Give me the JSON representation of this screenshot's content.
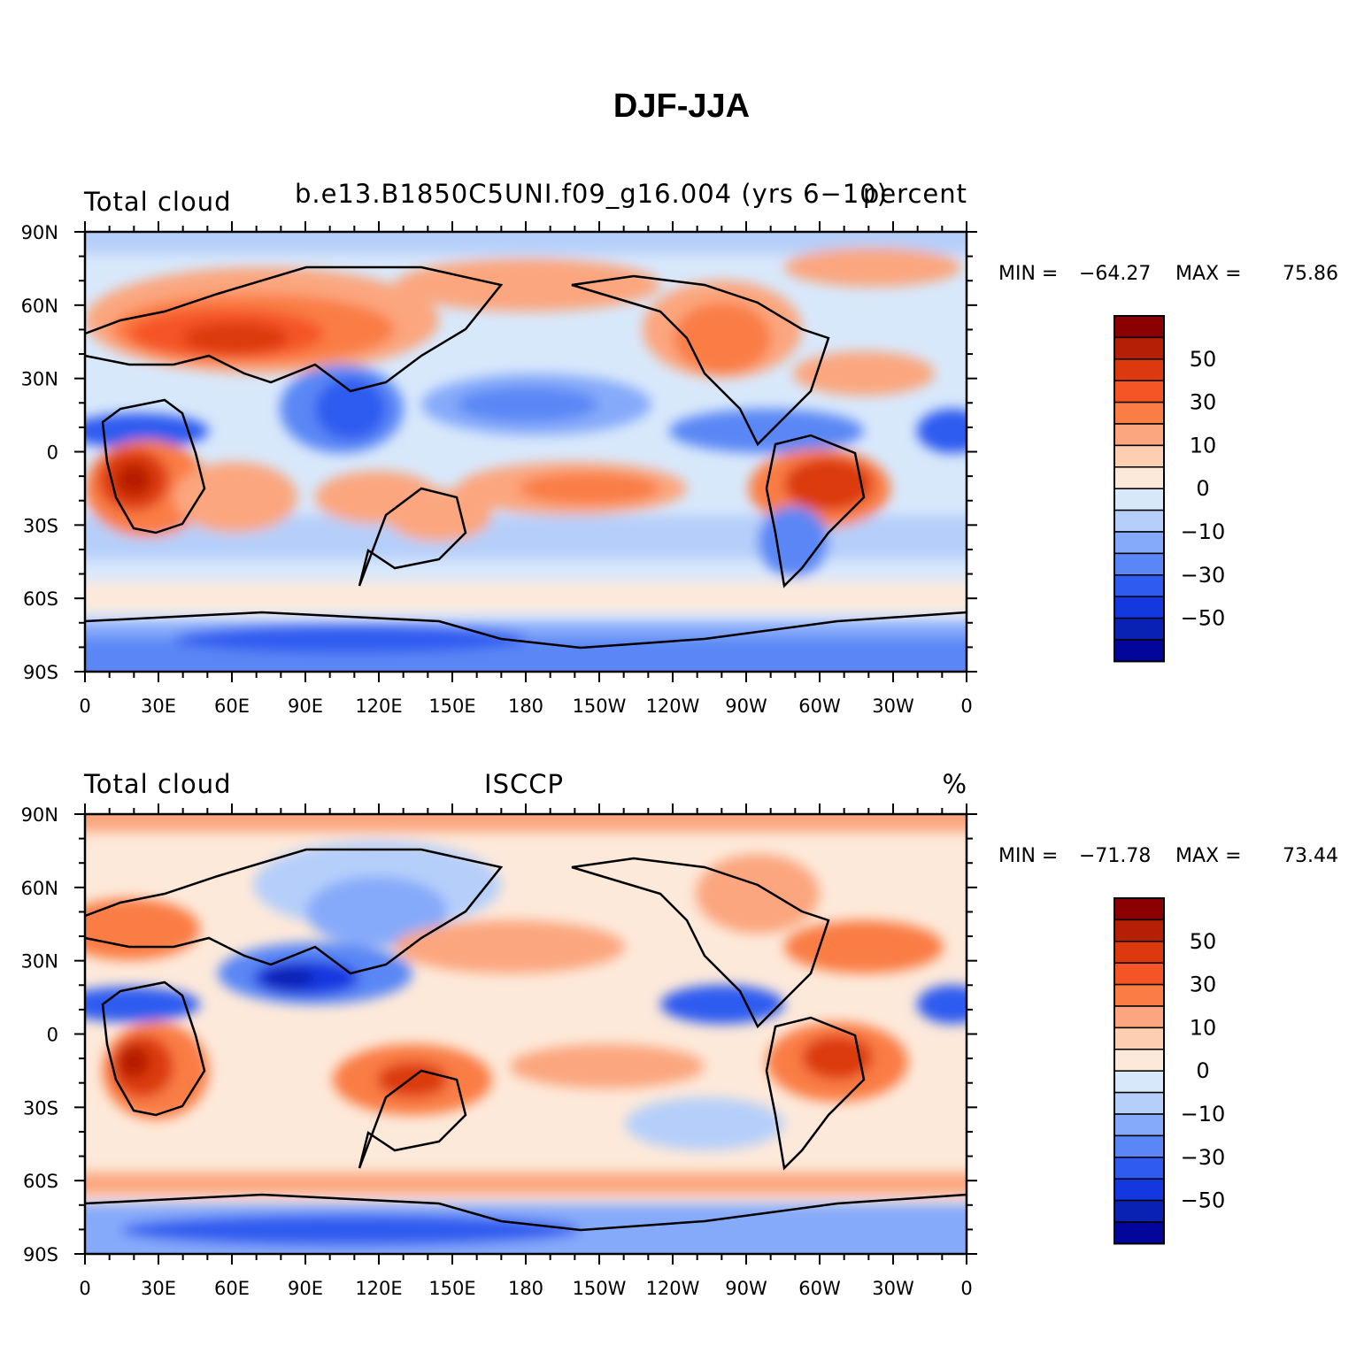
{
  "title": "DJF-JJA",
  "panels": [
    {
      "left_title": "Total cloud",
      "center_title": "b.e13.B1850C5UNI.f09_g16.004 (yrs 6−10)",
      "right_title": "percent",
      "stats": {
        "min_label": "MIN =",
        "min": "−64.27",
        "max_label": "MAX =",
        "max": "75.86"
      }
    },
    {
      "left_title": "Total cloud",
      "center_title": "ISCCP",
      "right_title": "%",
      "stats": {
        "min_label": "MIN =",
        "min": "−71.78",
        "max_label": "MAX =",
        "max": "73.44"
      }
    }
  ],
  "lat_labels": [
    "90N",
    "60N",
    "30N",
    "0",
    "30S",
    "60S",
    "90S"
  ],
  "lon_labels": [
    "0",
    "30E",
    "60E",
    "90E",
    "120E",
    "150E",
    "180",
    "150W",
    "120W",
    "90W",
    "60W",
    "30W",
    "0"
  ],
  "colorbar": {
    "colors": [
      "#8b0000",
      "#b51f06",
      "#dc3a0e",
      "#f55525",
      "#fa7d45",
      "#fba67e",
      "#fdcfb0",
      "#fde9da",
      "#d8e8fb",
      "#b6cffa",
      "#86aafa",
      "#5a87f5",
      "#2f5bf0",
      "#1438e0",
      "#0a22b4",
      "#03069a"
    ],
    "labels": [
      "50",
      "30",
      "10",
      "0",
      "−10",
      "−30",
      "−50"
    ]
  }
}
